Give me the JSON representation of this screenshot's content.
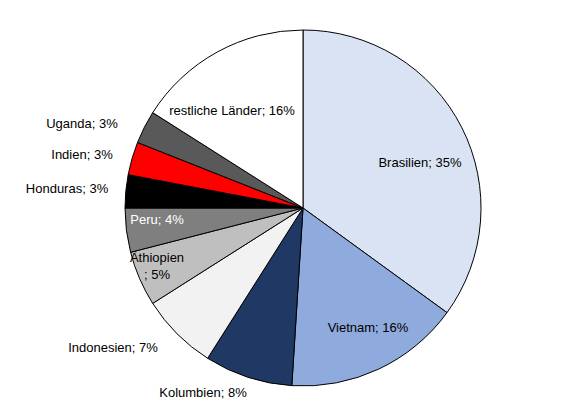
{
  "chart_data": {
    "type": "pie",
    "categories": [
      "Brasilien",
      "Vietnam",
      "Kolumbien",
      "Indonesien",
      "Äthiopien",
      "Peru",
      "Honduras",
      "Indien",
      "Uganda",
      "restliche Länder"
    ],
    "values": [
      35,
      16,
      8,
      7,
      5,
      4,
      3,
      3,
      3,
      16
    ],
    "value_labels": [
      "; 35%",
      "; 16%",
      "; 8%",
      "; 7%",
      "; 5%",
      "; 4%",
      "; 3%",
      "; 3%",
      "; 3%",
      "; 16%"
    ],
    "colors": [
      "#dae3f3",
      "#8faadc",
      "#203864",
      "#f2f2f2",
      "#bfbfbf",
      "#7f7f7f",
      "#000000",
      "#ff0000",
      "#595959",
      "#ffffff"
    ],
    "data_labels": true
  }
}
